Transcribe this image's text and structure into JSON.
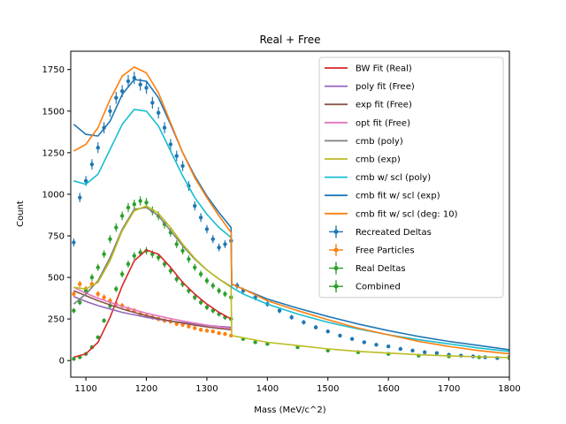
{
  "chart_data": {
    "type": "line",
    "title": "Real + Free",
    "xlabel": "Mass (MeV/c^2)",
    "ylabel": "Count",
    "xlim": [
      1075,
      1800
    ],
    "ylim": [
      -100,
      1860
    ],
    "xticks": [
      1100,
      1200,
      1300,
      1400,
      1500,
      1600,
      1700,
      1800
    ],
    "yticks": [
      0,
      250,
      500,
      750,
      1000,
      1250,
      1500,
      1750
    ],
    "grid": false,
    "legend_position": "upper right",
    "legend": [
      {
        "label": "BW Fit (Real)",
        "kind": "line",
        "color": "#d62728"
      },
      {
        "label": "poly fit (Free)",
        "kind": "line",
        "color": "#9467bd"
      },
      {
        "label": "exp fit (Free)",
        "kind": "line",
        "color": "#8c564b"
      },
      {
        "label": "opt fit (Free)",
        "kind": "line",
        "color": "#e377c2"
      },
      {
        "label": "cmb (poly)",
        "kind": "line",
        "color": "#7f7f7f"
      },
      {
        "label": "cmb (exp)",
        "kind": "line",
        "color": "#bcbd22"
      },
      {
        "label": "cmb w/ scl (poly)",
        "kind": "line",
        "color": "#17becf"
      },
      {
        "label": "cmb fit w/ scl (exp)",
        "kind": "line",
        "color": "#1f77b4"
      },
      {
        "label": "cmb fit w/ scl (deg: 10)",
        "kind": "line",
        "color": "#ff7f0e"
      },
      {
        "label": "Recreated Deltas",
        "kind": "errorbar",
        "color": "#1f77b4"
      },
      {
        "label": "Free Particles",
        "kind": "errorbar",
        "color": "#ff7f0e"
      },
      {
        "label": "Real Deltas",
        "kind": "errorbar",
        "color": "#2ca02c"
      },
      {
        "label": "Combined",
        "kind": "errorbar",
        "color": "#2ca02c"
      }
    ],
    "series": [
      {
        "name": "BW Fit (Real)",
        "kind": "line",
        "color": "#d62728",
        "x": [
          1080,
          1100,
          1120,
          1140,
          1160,
          1180,
          1200,
          1220,
          1240,
          1260,
          1280,
          1300,
          1320,
          1340
        ],
        "y": [
          20,
          40,
          110,
          260,
          450,
          600,
          665,
          640,
          560,
          470,
          400,
          340,
          290,
          250
        ]
      },
      {
        "name": "poly fit (Free)",
        "kind": "line",
        "color": "#9467bd",
        "x": [
          1080,
          1100,
          1120,
          1140,
          1160,
          1180,
          1200,
          1220,
          1240,
          1260,
          1280,
          1300,
          1320,
          1340
        ],
        "y": [
          385,
          355,
          330,
          310,
          290,
          275,
          260,
          248,
          237,
          228,
          220,
          212,
          205,
          200
        ]
      },
      {
        "name": "exp fit (Free)",
        "kind": "line",
        "color": "#8c564b",
        "x": [
          1080,
          1100,
          1120,
          1140,
          1160,
          1180,
          1200,
          1220,
          1240,
          1260,
          1280,
          1300,
          1320,
          1340
        ],
        "y": [
          420,
          390,
          360,
          335,
          310,
          290,
          270,
          252,
          238,
          225,
          213,
          202,
          193,
          185
        ]
      },
      {
        "name": "opt fit (Free)",
        "kind": "line",
        "color": "#e377c2",
        "x": [
          1080,
          1100,
          1120,
          1140,
          1160,
          1180,
          1200,
          1220,
          1240,
          1260,
          1280,
          1300,
          1320,
          1340
        ],
        "y": [
          440,
          405,
          375,
          350,
          325,
          305,
          285,
          268,
          252,
          238,
          225,
          213,
          202,
          192
        ]
      },
      {
        "name": "cmb (poly)",
        "kind": "line",
        "color": "#7f7f7f",
        "x": [
          1080,
          1100,
          1120,
          1140,
          1160,
          1180,
          1200,
          1220,
          1240,
          1260,
          1280,
          1300,
          1320,
          1340
        ],
        "y": [
          340,
          400,
          480,
          620,
          790,
          910,
          920,
          870,
          780,
          690,
          610,
          545,
          490,
          445
        ]
      },
      {
        "name": "cmb (exp)",
        "kind": "line",
        "color": "#bcbd22",
        "x": [
          1080,
          1100,
          1120,
          1140,
          1160,
          1180,
          1200,
          1220,
          1240,
          1260,
          1280,
          1300,
          1320,
          1340,
          1341,
          1400,
          1450,
          1500,
          1550,
          1600,
          1650,
          1700,
          1750,
          1800
        ],
        "y": [
          440,
          430,
          470,
          600,
          780,
          900,
          930,
          885,
          800,
          700,
          615,
          545,
          490,
          440,
          150,
          110,
          90,
          70,
          55,
          45,
          35,
          28,
          22,
          18
        ]
      },
      {
        "name": "cmb w/ scl (poly)",
        "kind": "line",
        "color": "#17becf",
        "x": [
          1080,
          1100,
          1120,
          1140,
          1160,
          1180,
          1200,
          1220,
          1240,
          1260,
          1280,
          1300,
          1320,
          1340,
          1341,
          1360,
          1400,
          1450,
          1500,
          1550,
          1600,
          1650,
          1700,
          1750,
          1800
        ],
        "y": [
          1080,
          1060,
          1120,
          1270,
          1420,
          1510,
          1500,
          1410,
          1260,
          1110,
          980,
          880,
          800,
          740,
          440,
          400,
          340,
          280,
          230,
          190,
          155,
          125,
          100,
          75,
          55
        ]
      },
      {
        "name": "cmb fit w/ scl (exp)",
        "kind": "line",
        "color": "#1f77b4",
        "x": [
          1080,
          1100,
          1120,
          1140,
          1160,
          1180,
          1200,
          1220,
          1240,
          1260,
          1280,
          1300,
          1320,
          1340,
          1341,
          1360,
          1400,
          1450,
          1500,
          1550,
          1600,
          1650,
          1700,
          1750,
          1800
        ],
        "y": [
          1420,
          1360,
          1350,
          1440,
          1600,
          1690,
          1680,
          1580,
          1420,
          1250,
          1110,
          990,
          890,
          800,
          460,
          430,
          370,
          315,
          265,
          220,
          180,
          145,
          115,
          90,
          65
        ]
      },
      {
        "name": "cmb fit w/ scl (deg: 10)",
        "kind": "line",
        "color": "#ff7f0e",
        "x": [
          1080,
          1100,
          1120,
          1140,
          1160,
          1180,
          1200,
          1220,
          1240,
          1260,
          1280,
          1300,
          1320,
          1340,
          1341,
          1360,
          1400,
          1450,
          1500,
          1550,
          1600,
          1650,
          1700,
          1750,
          1800
        ],
        "y": [
          1260,
          1300,
          1400,
          1570,
          1710,
          1765,
          1730,
          1610,
          1430,
          1250,
          1100,
          980,
          870,
          770,
          460,
          430,
          360,
          300,
          245,
          195,
          155,
          115,
          85,
          60,
          40
        ]
      },
      {
        "name": "Recreated Deltas",
        "kind": "errorbar",
        "color": "#1f77b4",
        "x": [
          1080,
          1090,
          1100,
          1110,
          1120,
          1130,
          1140,
          1150,
          1160,
          1170,
          1180,
          1190,
          1200,
          1210,
          1220,
          1230,
          1240,
          1250,
          1260,
          1270,
          1280,
          1290,
          1300,
          1310,
          1320,
          1330,
          1340,
          1350,
          1360,
          1380,
          1400,
          1420,
          1440,
          1460,
          1480,
          1500,
          1520,
          1540,
          1560,
          1580,
          1600,
          1620,
          1640,
          1660,
          1680,
          1700,
          1720,
          1740,
          1760,
          1780,
          1800
        ],
        "y": [
          710,
          980,
          1080,
          1180,
          1280,
          1400,
          1500,
          1580,
          1620,
          1680,
          1700,
          1660,
          1640,
          1550,
          1490,
          1400,
          1300,
          1230,
          1170,
          1050,
          930,
          860,
          790,
          730,
          680,
          700,
          720,
          450,
          420,
          380,
          340,
          300,
          260,
          230,
          200,
          175,
          150,
          130,
          110,
          95,
          85,
          70,
          60,
          50,
          45,
          35,
          30,
          25,
          20,
          15,
          20
        ]
      },
      {
        "name": "Free Particles",
        "kind": "errorbar",
        "color": "#ff7f0e",
        "x": [
          1080,
          1090,
          1100,
          1110,
          1120,
          1130,
          1140,
          1150,
          1160,
          1170,
          1180,
          1190,
          1200,
          1210,
          1220,
          1230,
          1240,
          1250,
          1260,
          1270,
          1280,
          1290,
          1300,
          1310,
          1320,
          1330,
          1340
        ],
        "y": [
          400,
          460,
          430,
          460,
          400,
          380,
          360,
          340,
          330,
          310,
          300,
          280,
          270,
          260,
          250,
          240,
          235,
          220,
          215,
          205,
          195,
          185,
          180,
          175,
          165,
          160,
          150
        ]
      },
      {
        "name": "Real Deltas",
        "kind": "errorbar",
        "color": "#2ca02c",
        "x": [
          1080,
          1090,
          1100,
          1110,
          1120,
          1130,
          1140,
          1150,
          1160,
          1170,
          1180,
          1190,
          1200,
          1210,
          1220,
          1230,
          1240,
          1250,
          1260,
          1270,
          1280,
          1290,
          1300,
          1310,
          1320,
          1330,
          1340
        ],
        "y": [
          10,
          20,
          40,
          80,
          140,
          240,
          330,
          430,
          520,
          580,
          630,
          650,
          660,
          640,
          620,
          580,
          540,
          490,
          460,
          420,
          380,
          350,
          320,
          300,
          280,
          260,
          250
        ]
      },
      {
        "name": "Combined",
        "kind": "errorbar",
        "color": "#2ca02c",
        "x": [
          1080,
          1090,
          1100,
          1110,
          1120,
          1130,
          1140,
          1150,
          1160,
          1170,
          1180,
          1190,
          1200,
          1210,
          1220,
          1230,
          1240,
          1250,
          1260,
          1270,
          1280,
          1290,
          1300,
          1310,
          1320,
          1330,
          1340,
          1360,
          1380,
          1400,
          1450,
          1500,
          1550,
          1600,
          1650,
          1700,
          1750,
          1800
        ],
        "y": [
          300,
          350,
          420,
          500,
          560,
          640,
          730,
          800,
          870,
          920,
          940,
          960,
          950,
          900,
          870,
          820,
          770,
          700,
          660,
          610,
          560,
          520,
          480,
          450,
          420,
          400,
          380,
          130,
          110,
          100,
          80,
          60,
          50,
          40,
          30,
          25,
          20,
          15
        ]
      }
    ]
  }
}
